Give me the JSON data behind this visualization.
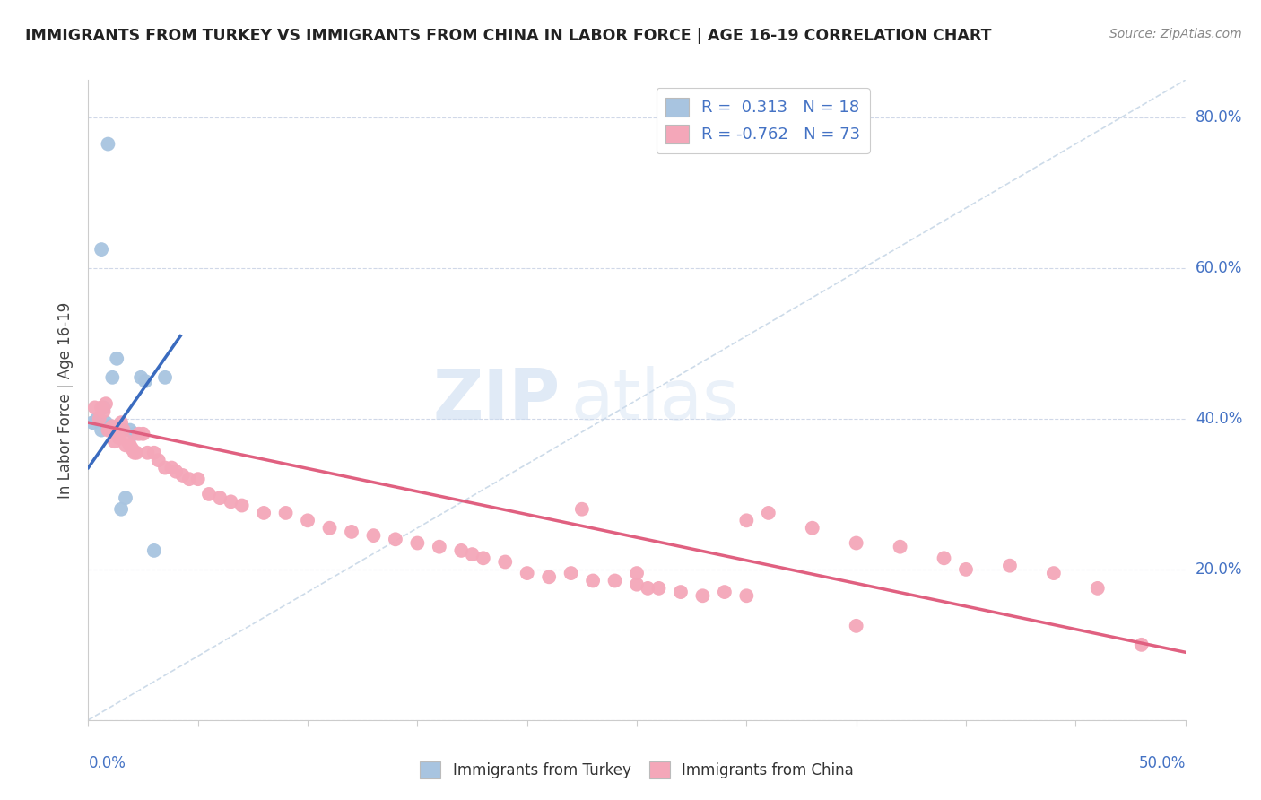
{
  "title": "IMMIGRANTS FROM TURKEY VS IMMIGRANTS FROM CHINA IN LABOR FORCE | AGE 16-19 CORRELATION CHART",
  "source": "Source: ZipAtlas.com",
  "ylabel": "In Labor Force | Age 16-19",
  "background_color": "#ffffff",
  "turkey_color": "#a8c4e0",
  "china_color": "#f4a7b9",
  "turkey_line_color": "#3a6bbf",
  "china_line_color": "#e06080",
  "dashed_line_color": "#b8cce0",
  "R_turkey": 0.313,
  "N_turkey": 18,
  "R_china": -0.762,
  "N_china": 73,
  "xlim": [
    0.0,
    0.5
  ],
  "ylim": [
    0.0,
    0.85
  ],
  "legend_turkey_label": "Immigrants from Turkey",
  "legend_china_label": "Immigrants from China",
  "turkey_x": [
    0.002,
    0.004,
    0.006,
    0.007,
    0.008,
    0.01,
    0.011,
    0.013,
    0.015,
    0.017,
    0.019,
    0.021,
    0.024,
    0.026,
    0.03,
    0.035,
    0.006,
    0.009
  ],
  "turkey_y": [
    0.395,
    0.4,
    0.385,
    0.415,
    0.395,
    0.39,
    0.455,
    0.48,
    0.28,
    0.295,
    0.385,
    0.38,
    0.455,
    0.45,
    0.225,
    0.455,
    0.625,
    0.765
  ],
  "china_x": [
    0.003,
    0.005,
    0.006,
    0.007,
    0.008,
    0.009,
    0.01,
    0.011,
    0.012,
    0.013,
    0.014,
    0.015,
    0.016,
    0.017,
    0.018,
    0.019,
    0.02,
    0.021,
    0.022,
    0.023,
    0.025,
    0.027,
    0.03,
    0.032,
    0.035,
    0.038,
    0.04,
    0.043,
    0.046,
    0.05,
    0.055,
    0.06,
    0.065,
    0.07,
    0.08,
    0.09,
    0.1,
    0.11,
    0.12,
    0.13,
    0.14,
    0.15,
    0.16,
    0.17,
    0.175,
    0.18,
    0.19,
    0.2,
    0.21,
    0.22,
    0.225,
    0.23,
    0.24,
    0.25,
    0.255,
    0.26,
    0.27,
    0.28,
    0.29,
    0.3,
    0.31,
    0.33,
    0.35,
    0.37,
    0.39,
    0.4,
    0.42,
    0.44,
    0.35,
    0.25,
    0.3,
    0.46,
    0.48
  ],
  "china_y": [
    0.415,
    0.4,
    0.415,
    0.41,
    0.42,
    0.385,
    0.385,
    0.39,
    0.37,
    0.38,
    0.375,
    0.395,
    0.385,
    0.365,
    0.37,
    0.365,
    0.36,
    0.355,
    0.355,
    0.38,
    0.38,
    0.355,
    0.355,
    0.345,
    0.335,
    0.335,
    0.33,
    0.325,
    0.32,
    0.32,
    0.3,
    0.295,
    0.29,
    0.285,
    0.275,
    0.275,
    0.265,
    0.255,
    0.25,
    0.245,
    0.24,
    0.235,
    0.23,
    0.225,
    0.22,
    0.215,
    0.21,
    0.195,
    0.19,
    0.195,
    0.28,
    0.185,
    0.185,
    0.18,
    0.175,
    0.175,
    0.17,
    0.165,
    0.17,
    0.265,
    0.275,
    0.255,
    0.235,
    0.23,
    0.215,
    0.2,
    0.205,
    0.195,
    0.125,
    0.195,
    0.165,
    0.175,
    0.1
  ],
  "turkey_line_x0": 0.0,
  "turkey_line_y0": 0.335,
  "turkey_line_x1": 0.042,
  "turkey_line_y1": 0.51,
  "dashed_line_x0": 0.0,
  "dashed_line_y0": 0.0,
  "dashed_line_x1": 0.5,
  "dashed_line_y1": 0.85,
  "china_line_x0": 0.0,
  "china_line_y0": 0.395,
  "china_line_x1": 0.5,
  "china_line_y1": 0.09
}
